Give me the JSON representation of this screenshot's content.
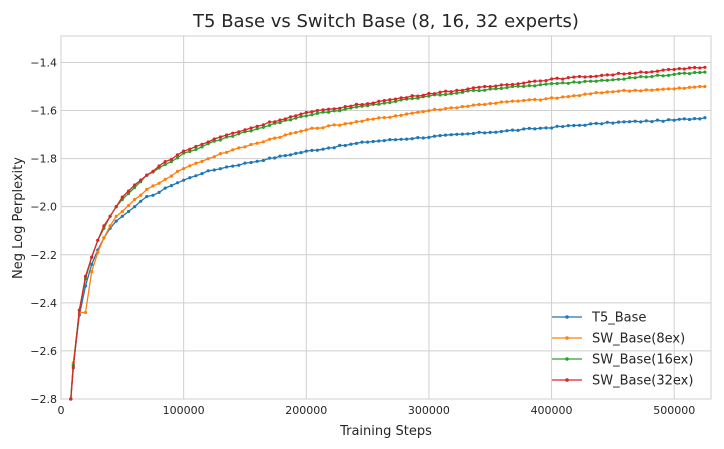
{
  "chart_data": {
    "type": "line",
    "title": "T5 Base vs Switch Base (8, 16, 32 experts)",
    "xlabel": "Training Steps",
    "ylabel": "Neg Log Perplexity",
    "xlim": [
      0,
      530000
    ],
    "ylim": [
      -2.8,
      -1.29
    ],
    "x_ticks": [
      0,
      100000,
      200000,
      300000,
      400000,
      500000
    ],
    "x_tick_labels": [
      "0",
      "100000",
      "200000",
      "300000",
      "400000",
      "500000"
    ],
    "y_ticks": [
      -2.8,
      -2.6,
      -2.4,
      -2.2,
      -2.0,
      -1.8,
      -1.6,
      -1.4
    ],
    "y_tick_labels": [
      "−2.8",
      "−2.6",
      "−2.4",
      "−2.2",
      "−2.0",
      "−1.8",
      "−1.6",
      "−1.4"
    ],
    "grid": true,
    "legend_position": "bottom-right",
    "series": [
      {
        "name": "T5_Base",
        "color": "#1f77b4",
        "points": [
          [
            8000,
            -2.8
          ],
          [
            10000,
            -2.66
          ],
          [
            15000,
            -2.45
          ],
          [
            20000,
            -2.33
          ],
          [
            25000,
            -2.24
          ],
          [
            30000,
            -2.18
          ],
          [
            35000,
            -2.13
          ],
          [
            40000,
            -2.09
          ],
          [
            45000,
            -2.06
          ],
          [
            50000,
            -2.04
          ],
          [
            60000,
            -2.0
          ],
          [
            70000,
            -1.96
          ],
          [
            80000,
            -1.94
          ],
          [
            90000,
            -1.91
          ],
          [
            100000,
            -1.89
          ],
          [
            115000,
            -1.86
          ],
          [
            130000,
            -1.84
          ],
          [
            150000,
            -1.82
          ],
          [
            170000,
            -1.8
          ],
          [
            200000,
            -1.77
          ],
          [
            250000,
            -1.73
          ],
          [
            300000,
            -1.71
          ],
          [
            350000,
            -1.69
          ],
          [
            400000,
            -1.67
          ],
          [
            450000,
            -1.65
          ],
          [
            500000,
            -1.64
          ],
          [
            525000,
            -1.63
          ]
        ]
      },
      {
        "name": "SW_Base(8ex)",
        "color": "#ff7f0e",
        "points": [
          [
            8000,
            -2.8
          ],
          [
            10000,
            -2.65
          ],
          [
            15000,
            -2.44
          ],
          [
            20000,
            -2.44
          ],
          [
            25000,
            -2.27
          ],
          [
            30000,
            -2.19
          ],
          [
            35000,
            -2.13
          ],
          [
            40000,
            -2.08
          ],
          [
            45000,
            -2.04
          ],
          [
            50000,
            -2.02
          ],
          [
            60000,
            -1.97
          ],
          [
            70000,
            -1.93
          ],
          [
            80000,
            -1.9
          ],
          [
            90000,
            -1.87
          ],
          [
            100000,
            -1.84
          ],
          [
            115000,
            -1.81
          ],
          [
            130000,
            -1.78
          ],
          [
            150000,
            -1.75
          ],
          [
            170000,
            -1.72
          ],
          [
            200000,
            -1.68
          ],
          [
            250000,
            -1.64
          ],
          [
            300000,
            -1.6
          ],
          [
            350000,
            -1.57
          ],
          [
            400000,
            -1.55
          ],
          [
            450000,
            -1.52
          ],
          [
            500000,
            -1.51
          ],
          [
            525000,
            -1.5
          ]
        ]
      },
      {
        "name": "SW_Base(16ex)",
        "color": "#2ca02c",
        "points": [
          [
            8000,
            -2.8
          ],
          [
            10000,
            -2.66
          ],
          [
            15000,
            -2.43
          ],
          [
            20000,
            -2.3
          ],
          [
            25000,
            -2.21
          ],
          [
            30000,
            -2.14
          ],
          [
            35000,
            -2.09
          ],
          [
            40000,
            -2.04
          ],
          [
            45000,
            -2.0
          ],
          [
            50000,
            -1.97
          ],
          [
            60000,
            -1.92
          ],
          [
            70000,
            -1.87
          ],
          [
            80000,
            -1.84
          ],
          [
            90000,
            -1.81
          ],
          [
            100000,
            -1.78
          ],
          [
            115000,
            -1.75
          ],
          [
            130000,
            -1.72
          ],
          [
            150000,
            -1.69
          ],
          [
            170000,
            -1.66
          ],
          [
            200000,
            -1.62
          ],
          [
            250000,
            -1.58
          ],
          [
            300000,
            -1.54
          ],
          [
            350000,
            -1.51
          ],
          [
            400000,
            -1.49
          ],
          [
            450000,
            -1.47
          ],
          [
            500000,
            -1.45
          ],
          [
            525000,
            -1.44
          ]
        ]
      },
      {
        "name": "SW_Base(32ex)",
        "color": "#d62728",
        "points": [
          [
            8000,
            -2.8
          ],
          [
            10000,
            -2.67
          ],
          [
            15000,
            -2.43
          ],
          [
            20000,
            -2.29
          ],
          [
            25000,
            -2.21
          ],
          [
            30000,
            -2.14
          ],
          [
            35000,
            -2.08
          ],
          [
            40000,
            -2.04
          ],
          [
            45000,
            -2.0
          ],
          [
            50000,
            -1.96
          ],
          [
            60000,
            -1.91
          ],
          [
            70000,
            -1.87
          ],
          [
            80000,
            -1.83
          ],
          [
            90000,
            -1.8
          ],
          [
            100000,
            -1.77
          ],
          [
            115000,
            -1.74
          ],
          [
            130000,
            -1.71
          ],
          [
            150000,
            -1.68
          ],
          [
            170000,
            -1.65
          ],
          [
            200000,
            -1.61
          ],
          [
            250000,
            -1.57
          ],
          [
            300000,
            -1.53
          ],
          [
            350000,
            -1.5
          ],
          [
            400000,
            -1.47
          ],
          [
            450000,
            -1.45
          ],
          [
            500000,
            -1.43
          ],
          [
            525000,
            -1.42
          ]
        ]
      }
    ]
  }
}
